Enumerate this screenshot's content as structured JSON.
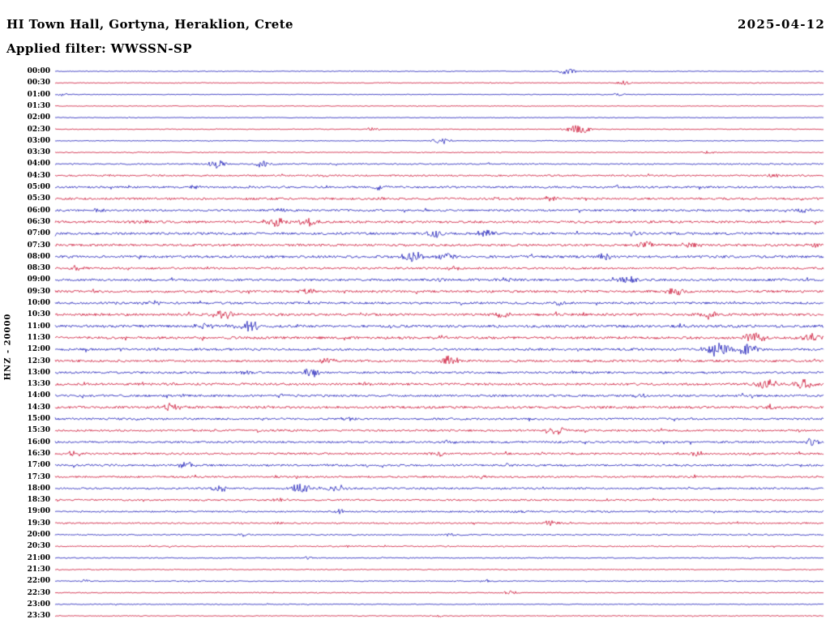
{
  "header": {
    "title": "HI Town Hall, Gortyna, Heraklion, Crete",
    "date": "2025-04-12",
    "filter": "Applied filter: WWSSN-SP",
    "y_axis_label": "HNZ - 20000"
  },
  "chart_data": {
    "type": "line",
    "variant": "helicorder-dayplot",
    "title": "HI Town Hall, Gortyna, Heraklion, Crete",
    "date": "2025-04-12",
    "filter": "WWSSN-SP",
    "channel": "HNZ",
    "scale_label": "20000",
    "row_interval_minutes": 30,
    "x_range_minutes": [
      0,
      30
    ],
    "legend": "none",
    "grid": false,
    "colors": {
      "blue": "#1a1ab8",
      "red": "#cc1133"
    },
    "rows": [
      {
        "time": "00:00",
        "color": "blue",
        "noise": 0.5,
        "events": [
          [
            0.667,
            4
          ]
        ]
      },
      {
        "time": "00:30",
        "color": "red",
        "noise": 0.5,
        "events": [
          [
            0.74,
            2.5
          ]
        ]
      },
      {
        "time": "01:00",
        "color": "blue",
        "noise": 0.45,
        "events": [
          [
            0.011,
            2
          ],
          [
            0.735,
            2
          ]
        ]
      },
      {
        "time": "01:30",
        "color": "red",
        "noise": 0.45,
        "events": []
      },
      {
        "time": "02:00",
        "color": "blue",
        "noise": 0.45,
        "events": []
      },
      {
        "time": "02:30",
        "color": "red",
        "noise": 0.5,
        "events": [
          [
            0.413,
            2
          ],
          [
            0.682,
            6
          ]
        ]
      },
      {
        "time": "03:00",
        "color": "blue",
        "noise": 0.5,
        "events": [
          [
            0.503,
            4
          ]
        ]
      },
      {
        "time": "03:30",
        "color": "red",
        "noise": 0.55,
        "events": [
          [
            0.851,
            2
          ]
        ]
      },
      {
        "time": "04:00",
        "color": "blue",
        "noise": 0.8,
        "events": [
          [
            0.213,
            5
          ],
          [
            0.271,
            4
          ]
        ]
      },
      {
        "time": "04:30",
        "color": "red",
        "noise": 1.0,
        "events": [
          [
            0.35,
            2.5
          ],
          [
            0.936,
            2.5
          ]
        ]
      },
      {
        "time": "05:00",
        "color": "blue",
        "noise": 1.2,
        "events": [
          [
            0.181,
            2.5
          ],
          [
            0.424,
            3
          ],
          [
            0.73,
            2
          ]
        ]
      },
      {
        "time": "05:30",
        "color": "red",
        "noise": 1.3,
        "events": [
          [
            0.419,
            4
          ],
          [
            0.571,
            2.5
          ],
          [
            0.645,
            3.5
          ]
        ]
      },
      {
        "time": "06:00",
        "color": "blue",
        "noise": 1.2,
        "events": [
          [
            0.055,
            2.5
          ],
          [
            0.292,
            2.5
          ],
          [
            0.973,
            3.5
          ]
        ]
      },
      {
        "time": "06:30",
        "color": "red",
        "noise": 1.4,
        "events": [
          [
            0.113,
            3.5
          ],
          [
            0.287,
            6
          ],
          [
            0.329,
            5
          ]
        ]
      },
      {
        "time": "07:00",
        "color": "blue",
        "noise": 1.4,
        "events": [
          [
            0.493,
            5
          ],
          [
            0.561,
            5
          ],
          [
            0.751,
            2.5
          ]
        ]
      },
      {
        "time": "07:30",
        "color": "red",
        "noise": 1.4,
        "events": [
          [
            0.772,
            4.5
          ],
          [
            0.83,
            3.5
          ],
          [
            0.988,
            3.5
          ]
        ]
      },
      {
        "time": "08:00",
        "color": "blue",
        "noise": 1.5,
        "events": [
          [
            0.466,
            6
          ],
          [
            0.508,
            4.5
          ],
          [
            0.714,
            3.5
          ]
        ]
      },
      {
        "time": "08:30",
        "color": "red",
        "noise": 1.2,
        "events": [
          [
            0.028,
            3.5
          ],
          [
            0.519,
            2.5
          ]
        ]
      },
      {
        "time": "09:00",
        "color": "blue",
        "noise": 1.4,
        "events": [
          [
            0.503,
            3.5
          ],
          [
            0.587,
            3
          ],
          [
            0.746,
            4.5
          ]
        ]
      },
      {
        "time": "09:30",
        "color": "red",
        "noise": 1.4,
        "events": [
          [
            0.329,
            3.5
          ],
          [
            0.809,
            5
          ]
        ]
      },
      {
        "time": "10:00",
        "color": "blue",
        "noise": 1.3,
        "events": [
          [
            0.123,
            4.5
          ],
          [
            0.656,
            2.5
          ]
        ]
      },
      {
        "time": "10:30",
        "color": "red",
        "noise": 1.5,
        "events": [
          [
            0.218,
            5.5
          ],
          [
            0.582,
            3.5
          ],
          [
            0.851,
            5
          ]
        ]
      },
      {
        "time": "11:00",
        "color": "blue",
        "noise": 1.5,
        "events": [
          [
            0.192,
            4.5
          ],
          [
            0.255,
            5.5
          ],
          [
            0.814,
            3.5
          ]
        ]
      },
      {
        "time": "11:30",
        "color": "red",
        "noise": 1.5,
        "events": [
          [
            0.503,
            2.5
          ],
          [
            0.909,
            6
          ],
          [
            0.988,
            5.5
          ]
        ]
      },
      {
        "time": "12:00",
        "color": "blue",
        "noise": 1.4,
        "events": [
          [
            0.134,
            2.5
          ],
          [
            0.862,
            8
          ],
          [
            0.899,
            7
          ]
        ]
      },
      {
        "time": "12:30",
        "color": "red",
        "noise": 1.4,
        "events": [
          [
            0.355,
            3.5
          ],
          [
            0.514,
            6
          ]
        ]
      },
      {
        "time": "13:00",
        "color": "blue",
        "noise": 1.3,
        "events": [
          [
            0.245,
            2.5
          ],
          [
            0.334,
            5
          ]
        ]
      },
      {
        "time": "13:30",
        "color": "red",
        "noise": 1.4,
        "events": [
          [
            0.403,
            2.5
          ],
          [
            0.925,
            6.5
          ],
          [
            0.973,
            6
          ]
        ]
      },
      {
        "time": "14:00",
        "color": "blue",
        "noise": 1.3,
        "events": [
          [
            0.297,
            3.5
          ],
          [
            0.762,
            2.5
          ]
        ]
      },
      {
        "time": "14:30",
        "color": "red",
        "noise": 1.4,
        "events": [
          [
            0.15,
            5.5
          ],
          [
            0.93,
            3.5
          ]
        ]
      },
      {
        "time": "15:00",
        "color": "blue",
        "noise": 1.2,
        "events": [
          [
            0.382,
            3.5
          ]
        ]
      },
      {
        "time": "15:30",
        "color": "red",
        "noise": 1.2,
        "events": [
          [
            0.651,
            5.5
          ]
        ]
      },
      {
        "time": "16:00",
        "color": "blue",
        "noise": 1.2,
        "events": [
          [
            0.514,
            2.5
          ],
          [
            0.983,
            4.5
          ]
        ]
      },
      {
        "time": "16:30",
        "color": "red",
        "noise": 1.2,
        "events": [
          [
            0.028,
            4.5
          ],
          [
            0.498,
            3.5
          ],
          [
            0.835,
            3
          ]
        ]
      },
      {
        "time": "17:00",
        "color": "blue",
        "noise": 1.2,
        "events": [
          [
            0.171,
            4.5
          ],
          [
            0.593,
            2.5
          ]
        ]
      },
      {
        "time": "17:30",
        "color": "red",
        "noise": 1.1,
        "events": [
          [
            0.551,
            2.5
          ]
        ]
      },
      {
        "time": "18:00",
        "color": "blue",
        "noise": 1.1,
        "events": [
          [
            0.213,
            4.5
          ],
          [
            0.319,
            5.5
          ],
          [
            0.366,
            4.5
          ]
        ]
      },
      {
        "time": "18:30",
        "color": "red",
        "noise": 1.0,
        "events": [
          [
            0.292,
            2.5
          ]
        ]
      },
      {
        "time": "19:00",
        "color": "blue",
        "noise": 1.0,
        "events": [
          [
            0.371,
            2.5
          ],
          [
            0.603,
            2
          ]
        ]
      },
      {
        "time": "19:30",
        "color": "red",
        "noise": 0.9,
        "events": [
          [
            0.292,
            2
          ],
          [
            0.646,
            3.5
          ]
        ]
      },
      {
        "time": "20:00",
        "color": "blue",
        "noise": 0.8,
        "events": [
          [
            0.245,
            2
          ],
          [
            0.514,
            1.8
          ]
        ]
      },
      {
        "time": "20:30",
        "color": "red",
        "noise": 0.7,
        "events": [
          [
            0.382,
            1.5
          ]
        ]
      },
      {
        "time": "21:00",
        "color": "blue",
        "noise": 0.65,
        "events": [
          [
            0.329,
            1.8
          ]
        ]
      },
      {
        "time": "21:30",
        "color": "red",
        "noise": 0.6,
        "events": []
      },
      {
        "time": "22:00",
        "color": "blue",
        "noise": 0.6,
        "events": [
          [
            0.039,
            2
          ],
          [
            0.561,
            1.8
          ]
        ]
      },
      {
        "time": "22:30",
        "color": "red",
        "noise": 0.6,
        "events": [
          [
            0.593,
            3.5
          ]
        ]
      },
      {
        "time": "23:00",
        "color": "blue",
        "noise": 0.55,
        "events": []
      },
      {
        "time": "23:30",
        "color": "red",
        "noise": 0.55,
        "events": [
          [
            0.498,
            1.5
          ]
        ]
      }
    ]
  }
}
